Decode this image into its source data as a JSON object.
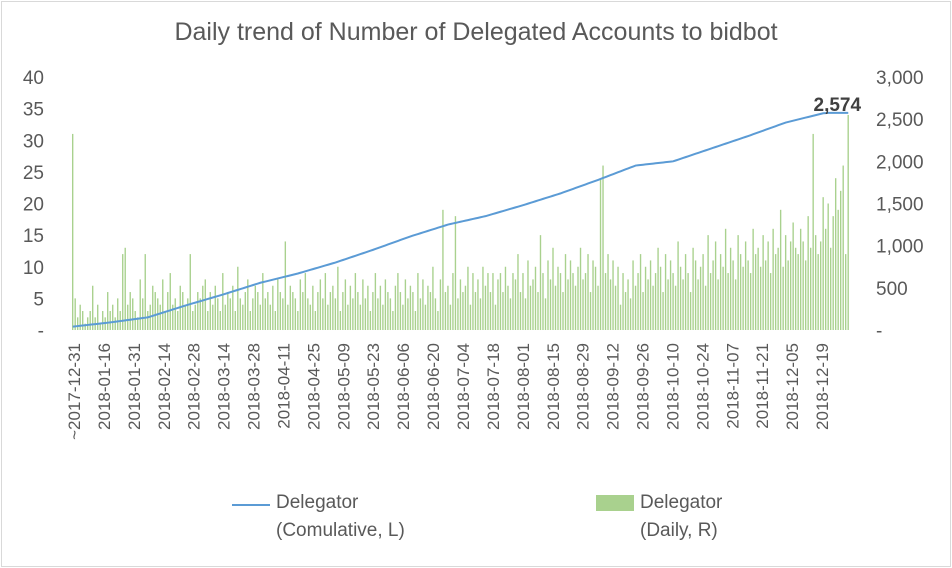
{
  "chart_data": {
    "type": "bar+line",
    "title": "Daily trend of Number of Delegated Accounts to bidbot",
    "x_tick_labels": [
      "~2017-12-31",
      "2018-01-16",
      "2018-01-31",
      "2018-02-14",
      "2018-02-28",
      "2018-03-14",
      "2018-03-28",
      "2018-04-11",
      "2018-04-25",
      "2018-05-09",
      "2018-05-23",
      "2018-06-06",
      "2018-06-20",
      "2018-07-04",
      "2018-07-18",
      "2018-08-01",
      "2018-08-15",
      "2018-08-29",
      "2018-09-12",
      "2018-09-26",
      "2018-10-10",
      "2018-10-24",
      "2018-11-07",
      "2018-11-21",
      "2018-12-05",
      "2018-12-19"
    ],
    "y_left": {
      "ticks": [
        "40",
        "35",
        "30",
        "25",
        "20",
        "15",
        "10",
        "5",
        "-"
      ],
      "range": [
        0,
        40
      ]
    },
    "y_right": {
      "ticks": [
        "3,000",
        "2,500",
        "2,000",
        "1,500",
        "1,000",
        "500",
        "-"
      ],
      "range": [
        0,
        3000
      ]
    },
    "series": [
      {
        "name": "Delegator (Cumulative, L)",
        "axis": "right",
        "style": "line",
        "color": "#5b9bd5",
        "anchors": [
          [
            0,
            40
          ],
          [
            15,
            90
          ],
          [
            30,
            150
          ],
          [
            45,
            290
          ],
          [
            60,
            420
          ],
          [
            75,
            560
          ],
          [
            90,
            670
          ],
          [
            105,
            800
          ],
          [
            120,
            950
          ],
          [
            135,
            1110
          ],
          [
            150,
            1250
          ],
          [
            165,
            1350
          ],
          [
            180,
            1480
          ],
          [
            195,
            1620
          ],
          [
            210,
            1780
          ],
          [
            225,
            1950
          ],
          [
            240,
            2000
          ],
          [
            255,
            2150
          ],
          [
            270,
            2300
          ],
          [
            285,
            2460
          ],
          [
            300,
            2570
          ],
          [
            302,
            2574
          ]
        ],
        "end_label": "2,574"
      },
      {
        "name": "Delegator (Daily, R)",
        "axis": "left",
        "style": "bar",
        "color": "#a9d18e",
        "values": [
          31,
          5,
          2,
          4,
          3,
          1,
          2,
          3,
          7,
          2,
          4,
          1,
          3,
          2,
          6,
          3,
          4,
          2,
          5,
          3,
          12,
          13,
          4,
          6,
          5,
          3,
          2,
          8,
          5,
          12,
          3,
          4,
          7,
          6,
          5,
          4,
          8,
          3,
          6,
          9,
          4,
          5,
          3,
          7,
          6,
          4,
          5,
          12,
          3,
          4,
          6,
          5,
          7,
          8,
          3,
          6,
          4,
          7,
          5,
          3,
          9,
          4,
          6,
          5,
          7,
          3,
          10,
          5,
          4,
          6,
          8,
          3,
          5,
          7,
          6,
          4,
          9,
          5,
          6,
          4,
          7,
          3,
          8,
          6,
          5,
          14,
          4,
          7,
          6,
          5,
          3,
          8,
          6,
          9,
          5,
          4,
          7,
          3,
          6,
          8,
          5,
          9,
          4,
          6,
          7,
          5,
          10,
          3,
          6,
          8,
          4,
          7,
          5,
          9,
          6,
          4,
          8,
          5,
          7,
          3,
          6,
          9,
          5,
          7,
          4,
          8,
          6,
          5,
          3,
          7,
          9,
          6,
          4,
          8,
          5,
          7,
          6,
          3,
          9,
          5,
          8,
          4,
          7,
          6,
          10,
          5,
          3,
          8,
          19,
          6,
          7,
          4,
          9,
          18,
          5,
          8,
          6,
          7,
          10,
          4,
          9,
          6,
          8,
          5,
          10,
          7,
          9,
          6,
          9,
          4,
          8,
          9,
          6,
          10,
          7,
          5,
          9,
          8,
          12,
          6,
          9,
          5,
          11,
          7,
          8,
          10,
          6,
          15,
          9,
          5,
          11,
          8,
          13,
          7,
          10,
          9,
          6,
          12,
          8,
          11,
          9,
          7,
          10,
          13,
          8,
          9,
          12,
          6,
          11,
          10,
          7,
          24,
          26,
          9,
          12,
          8,
          11,
          7,
          10,
          4,
          9,
          6,
          8,
          5,
          11,
          7,
          9,
          12,
          6,
          10,
          8,
          11,
          7,
          9,
          13,
          10,
          6,
          12,
          8,
          11,
          9,
          7,
          14,
          10,
          8,
          12,
          9,
          6,
          13,
          11,
          8,
          10,
          12,
          7,
          15,
          9,
          11,
          14,
          8,
          12,
          10,
          16,
          9,
          13,
          11,
          8,
          15,
          12,
          10,
          14,
          11,
          9,
          16,
          12,
          13,
          10,
          15,
          11,
          14,
          9,
          16,
          12,
          13,
          19,
          10,
          15,
          11,
          14,
          17,
          13,
          12,
          16,
          14,
          11,
          18,
          13,
          31,
          15,
          12,
          14,
          21,
          16,
          20,
          13,
          18,
          24,
          19,
          22,
          26,
          12,
          34
        ]
      }
    ],
    "legend": [
      {
        "line1": "Delegator",
        "line2": "(Comulative, L)"
      },
      {
        "line1": "Delegator",
        "line2": "(Daily, R)"
      }
    ]
  }
}
